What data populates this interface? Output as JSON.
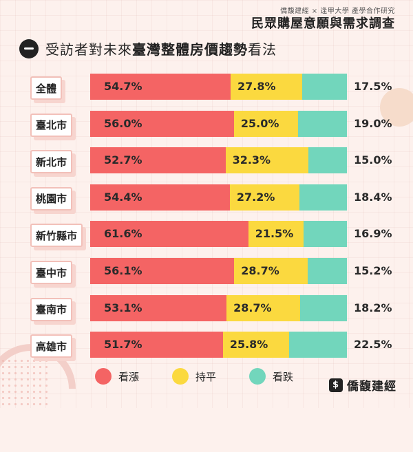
{
  "header": {
    "credit": "僑馥建經 × 逢甲大學 產學合作研究",
    "title": "民眾購屋意願與需求調查"
  },
  "section": {
    "heading_pre": "受訪者對未來",
    "heading_bold": "臺灣整體房價趨勢",
    "heading_post": "看法"
  },
  "colors": {
    "up": "#f46464",
    "flat": "#fbd93f",
    "down": "#72d6bc"
  },
  "chart_data": {
    "type": "bar",
    "stacked": true,
    "orientation": "horizontal",
    "categories": [
      "全體",
      "臺北市",
      "新北市",
      "桃園市",
      "新竹縣市",
      "臺中市",
      "臺南市",
      "高雄市"
    ],
    "series": [
      {
        "name": "看漲",
        "values": [
          54.7,
          56.0,
          52.7,
          54.4,
          61.6,
          56.1,
          53.1,
          51.7
        ],
        "labels": [
          "54.7%",
          "56.0%",
          "52.7%",
          "54.4%",
          "61.6%",
          "56.1%",
          "53.1%",
          "51.7%"
        ]
      },
      {
        "name": "持平",
        "values": [
          27.8,
          25.0,
          32.3,
          27.2,
          21.5,
          28.7,
          28.7,
          25.8
        ],
        "labels": [
          "27.8%",
          "25.0%",
          "32.3%",
          "27.2%",
          "21.5%",
          "28.7%",
          "28.7%",
          "25.8%"
        ]
      },
      {
        "name": "看跌",
        "values": [
          17.5,
          19.0,
          15.0,
          18.4,
          16.9,
          15.2,
          18.2,
          22.5
        ],
        "labels": [
          "17.5%",
          "19.0%",
          "15.0%",
          "18.4%",
          "16.9%",
          "15.2%",
          "18.2%",
          "22.5%"
        ]
      }
    ],
    "xlim": [
      0,
      100
    ],
    "legend_position": "bottom"
  },
  "brand": {
    "name": "僑馥建經",
    "icon_glyph": "$"
  }
}
